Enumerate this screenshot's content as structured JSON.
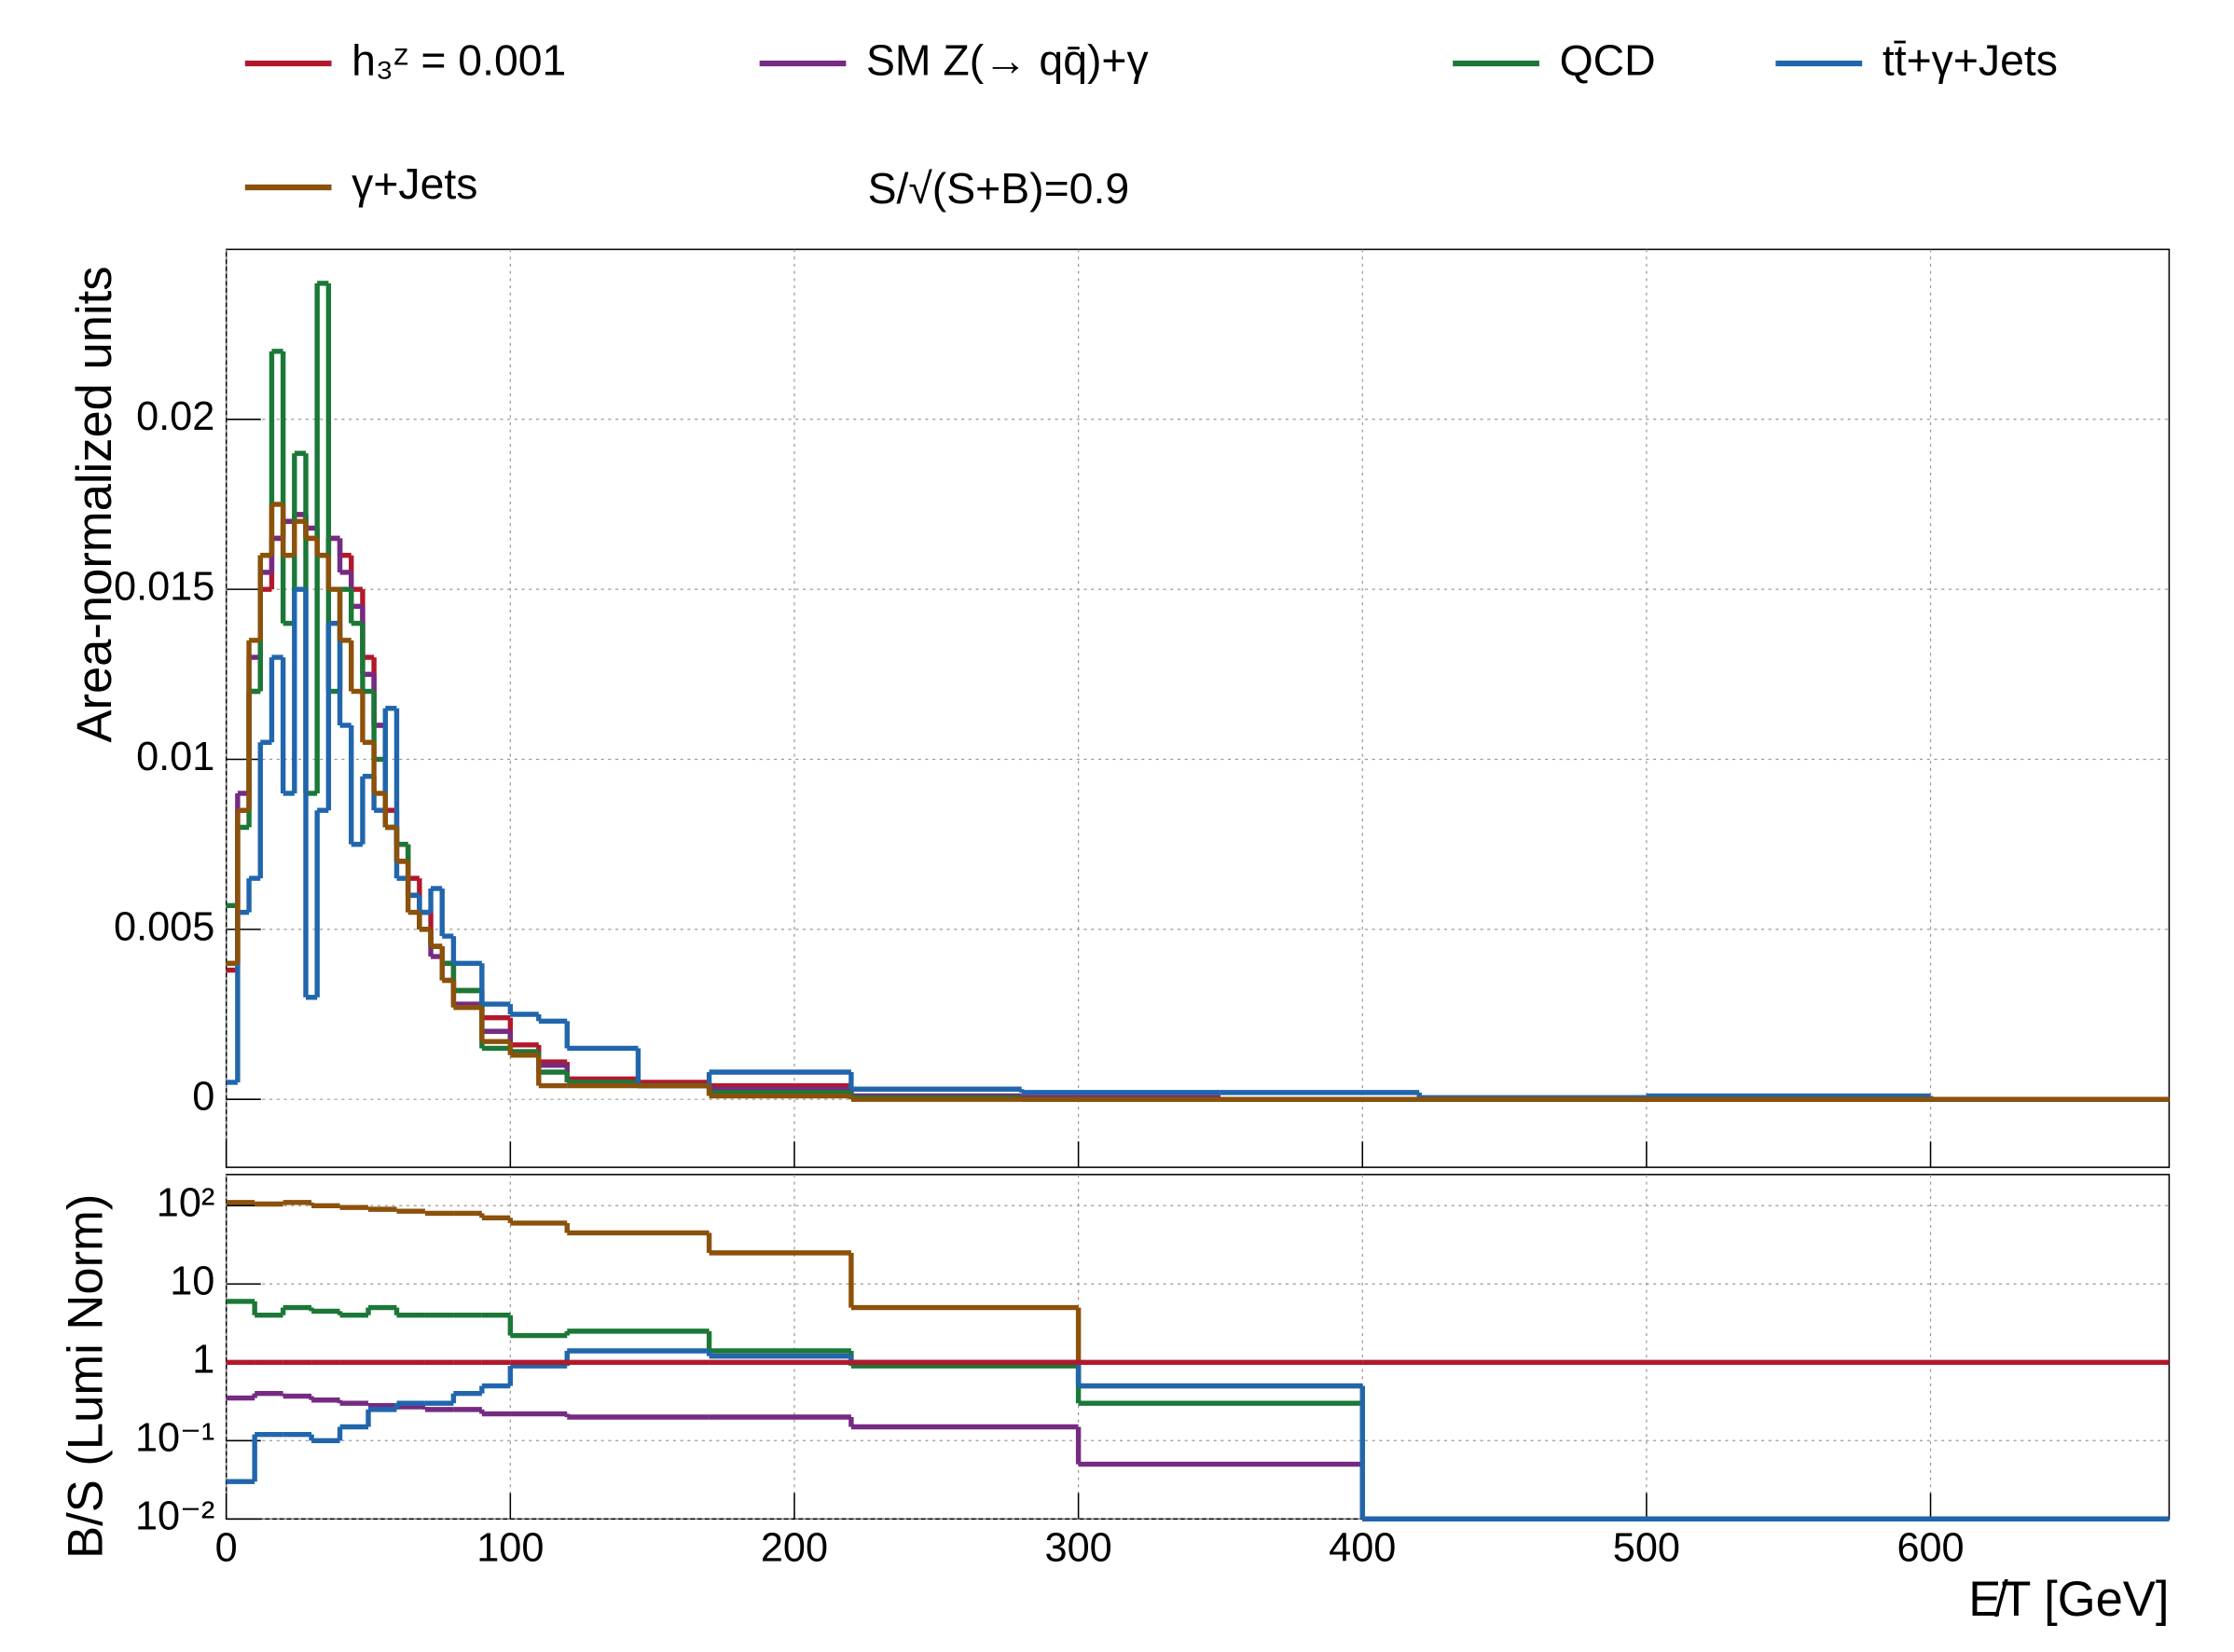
{
  "chart_data": [
    {
      "type": "histogram",
      "ylabel": "Area-normalized units",
      "annotation": "S/√(S+B)=0.9",
      "bins": [
        0,
        4,
        8,
        12,
        16,
        20,
        24,
        28,
        32,
        36,
        40,
        44,
        48,
        52,
        56,
        60,
        64,
        68,
        72,
        76,
        80,
        90,
        100,
        110,
        120,
        145,
        170,
        220,
        280,
        350,
        420,
        500,
        600,
        684
      ],
      "xlim": [
        0,
        684
      ],
      "xticks": [
        0,
        100,
        200,
        300,
        400,
        500,
        600
      ],
      "ylim": [
        -0.002,
        0.025
      ],
      "yticks": [
        0,
        0.005,
        0.01,
        0.015,
        0.02
      ],
      "grid": true,
      "series": [
        {
          "name": "h₃ᶻ = 0.001",
          "color": "#b2182b",
          "values": [
            0.0038,
            0.0085,
            0.012,
            0.015,
            0.0165,
            0.017,
            0.0172,
            0.0165,
            0.016,
            0.0165,
            0.016,
            0.015,
            0.013,
            0.011,
            0.0085,
            0.0075,
            0.0065,
            0.0055,
            0.0045,
            0.004,
            0.0032,
            0.0024,
            0.0016,
            0.0011,
            0.0006,
            0.0005,
            0.0004,
            0.0001,
            5e-05,
            0,
            0,
            0,
            0
          ]
        },
        {
          "name": "SM Z(→ qq̄)+γ",
          "color": "#762a83",
          "values": [
            0.004,
            0.009,
            0.013,
            0.0155,
            0.0165,
            0.017,
            0.0172,
            0.0168,
            0.016,
            0.0165,
            0.0155,
            0.0145,
            0.0125,
            0.011,
            0.008,
            0.007,
            0.006,
            0.005,
            0.0042,
            0.0035,
            0.0028,
            0.002,
            0.0014,
            0.001,
            0.0005,
            0.0004,
            0.0003,
            0.0001,
            4e-05,
            0,
            0,
            0,
            0
          ]
        },
        {
          "name": "QCD",
          "color": "#1b7837",
          "values": [
            0.0057,
            0.008,
            0.012,
            0.016,
            0.022,
            0.014,
            0.019,
            0.009,
            0.024,
            0.012,
            0.015,
            0.014,
            0.012,
            0.01,
            0.008,
            0.0075,
            0.006,
            0.005,
            0.0045,
            0.004,
            0.0032,
            0.0015,
            0.0014,
            0.0008,
            0.0005,
            0.0004,
            0.0002,
            5e-05,
            0,
            0,
            0,
            0,
            0
          ]
        },
        {
          "name": "tt̄+γ+Jets",
          "color": "#2166ac",
          "values": [
            0.0005,
            0.0055,
            0.0065,
            0.0105,
            0.013,
            0.009,
            0.015,
            0.003,
            0.0085,
            0.014,
            0.011,
            0.0075,
            0.0095,
            0.0085,
            0.0115,
            0.0065,
            0.006,
            0.0055,
            0.0062,
            0.0048,
            0.004,
            0.0028,
            0.0025,
            0.0023,
            0.0015,
            0.0004,
            0.0008,
            0.0003,
            0.0002,
            0.0002,
            5e-05,
            0.0001,
            0
          ]
        },
        {
          "name": "γ+Jets",
          "color": "#8c510a",
          "values": [
            0.004,
            0.0085,
            0.0135,
            0.016,
            0.0175,
            0.016,
            0.017,
            0.0165,
            0.016,
            0.015,
            0.0135,
            0.012,
            0.0105,
            0.009,
            0.008,
            0.007,
            0.0055,
            0.005,
            0.0045,
            0.0035,
            0.0027,
            0.0017,
            0.0013,
            0.0004,
            0.0004,
            0.0004,
            0.0001,
            0,
            0,
            0,
            0,
            0,
            0
          ]
        }
      ]
    },
    {
      "type": "histogram",
      "xlabel": "E̸T [GeV]",
      "ylabel": "B/S (Lumi Norm)",
      "bins": [
        0,
        10,
        20,
        30,
        40,
        50,
        60,
        70,
        80,
        90,
        100,
        120,
        170,
        220,
        300,
        400,
        684
      ],
      "xlim": [
        0,
        684
      ],
      "xticks": [
        0,
        100,
        200,
        300,
        400,
        500,
        600
      ],
      "ylim": [
        0.01,
        250
      ],
      "log": true,
      "yticks": [
        {
          "value": 0.01,
          "label": "10⁻²"
        },
        {
          "value": 0.1,
          "label": "10⁻¹"
        },
        1,
        10,
        {
          "value": 100,
          "label": "10²"
        }
      ],
      "grid": true,
      "series": [
        {
          "color": "#8c510a",
          "values": [
            110,
            105,
            110,
            100,
            95,
            90,
            85,
            80,
            80,
            70,
            60,
            45,
            25,
            5,
            0.5,
            0.01
          ]
        },
        {
          "color": "#1b7837",
          "values": [
            6,
            4,
            5,
            4.5,
            4,
            5,
            4,
            4,
            4,
            4,
            2.2,
            2.5,
            1.4,
            0.9,
            0.3,
            0.01
          ]
        },
        {
          "color": "#762a83",
          "values": [
            0.35,
            0.4,
            0.37,
            0.33,
            0.3,
            0.28,
            0.27,
            0.25,
            0.25,
            0.22,
            0.22,
            0.2,
            0.2,
            0.15,
            0.05,
            0.01
          ]
        },
        {
          "color": "#2166ac",
          "values": [
            0.03,
            0.12,
            0.12,
            0.1,
            0.15,
            0.25,
            0.3,
            0.3,
            0.4,
            0.5,
            0.9,
            1.4,
            1.2,
            1,
            0.5,
            0.01
          ]
        },
        {
          "color": "#b2182b",
          "values": [
            1,
            1,
            1,
            1,
            1,
            1,
            1,
            1,
            1,
            1,
            1,
            1,
            1,
            1,
            1,
            1
          ]
        }
      ]
    }
  ]
}
